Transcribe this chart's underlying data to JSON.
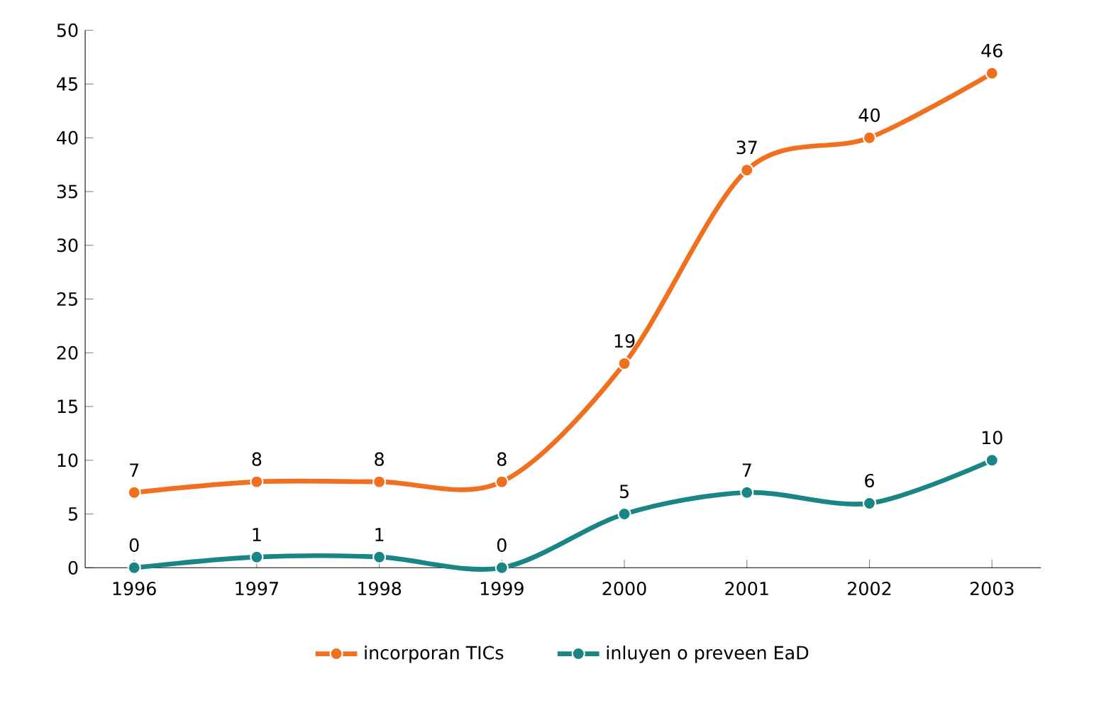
{
  "chart_data": {
    "type": "line",
    "categories": [
      "1996",
      "1997",
      "1998",
      "1999",
      "2000",
      "2001",
      "2002",
      "2003"
    ],
    "series": [
      {
        "name": "incorporan TICs",
        "color": "#f07020",
        "values": [
          7,
          8,
          8,
          8,
          19,
          37,
          40,
          46
        ]
      },
      {
        "name": "inluyen o preveen EaD",
        "color": "#1a8585",
        "values": [
          0,
          1,
          1,
          0,
          5,
          7,
          6,
          10
        ]
      }
    ],
    "ylim": [
      0,
      50
    ],
    "yticks": [
      0,
      5,
      10,
      15,
      20,
      25,
      30,
      35,
      40,
      45,
      50
    ],
    "data_labels": true,
    "grid": false,
    "legend": "bottom",
    "marker": "circle",
    "line_style": "solid"
  }
}
